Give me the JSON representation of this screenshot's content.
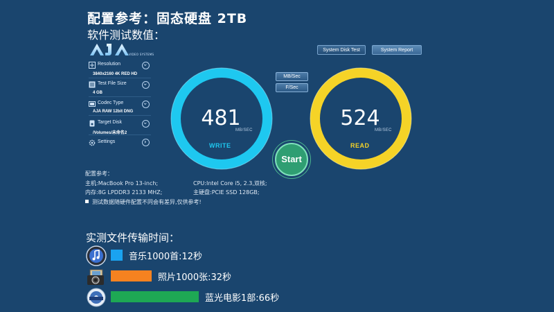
{
  "header": {
    "title": "配置参考：固态硬盘 2TB",
    "subtitle": "软件测试数值："
  },
  "app": {
    "logo_text": "AJA",
    "logo_subtext": "VIDEO SYSTEMS",
    "system_disk_test_label": "System Disk Test",
    "system_report_label": "System Report",
    "unit_mbsec_label": "MB/Sec",
    "unit_fsec_label": "F/Sec",
    "start_label": "Start",
    "settings": [
      {
        "label": "Resolution",
        "value": "3840x2160 4K RED HD",
        "icon": "resolution-icon"
      },
      {
        "label": "Test File Size",
        "value": "4 GB",
        "icon": "file-size-icon"
      },
      {
        "label": "Codec Type",
        "value": "AJA RAW 12bit DNG",
        "icon": "codec-icon"
      },
      {
        "label": "Target Disk",
        "value": "/Volumes/未命名2",
        "icon": "disk-icon"
      },
      {
        "label": "Settings",
        "value": "",
        "icon": "settings-gear-icon"
      }
    ],
    "write": {
      "value": "481",
      "unit": "MB/SEC",
      "label": "WRITE",
      "color": "#1ec8f0"
    },
    "read": {
      "value": "524",
      "unit": "MB/SEC",
      "label": "READ",
      "color": "#f5d327"
    }
  },
  "config": {
    "heading": "配置参考：",
    "host": "主机:MacBook Pro 13-inch;",
    "cpu": "CPU:Intel Core i5, 2.3,双核;",
    "memory": "内存:8G LPDDR3 2133 MHZ;",
    "host_disk": "主硬盘:PCIE SSD 128GB;",
    "note": "测试数据随硬件配置不同会有差异,仅供参考!"
  },
  "transfer": {
    "title": "实测文件传输时间：",
    "rows": [
      {
        "icon": "music-note-icon",
        "text": "音乐1000首:12秒",
        "color": "#1aa3f0"
      },
      {
        "icon": "camera-icon",
        "text": "照片1000张:32秒",
        "color": "#f58220"
      },
      {
        "icon": "dvd-disc-icon",
        "text": "蓝光电影1部:66秒",
        "color": "#1ea854"
      }
    ]
  }
}
